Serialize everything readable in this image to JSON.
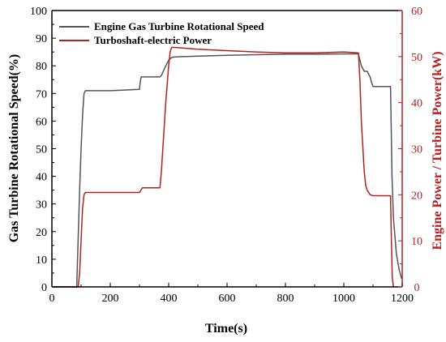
{
  "chart_data": {
    "type": "line",
    "xlabel": "Time(s)",
    "ylabel_left": "Gas Turbine Rotational Speed(%)",
    "ylabel_right": "Engine Power / Turbine Power(kW)",
    "xlim": [
      0,
      1200
    ],
    "ylim_left": [
      0,
      100
    ],
    "ylim_right": [
      0,
      60
    ],
    "x_ticks": [
      0,
      200,
      400,
      600,
      800,
      1000,
      1200
    ],
    "y_ticks_left": [
      0,
      10,
      20,
      30,
      40,
      50,
      60,
      70,
      80,
      90,
      100
    ],
    "y_ticks_right": [
      0,
      10,
      20,
      30,
      40,
      50,
      60
    ],
    "grid": false,
    "legend_position": "top-center",
    "colors": {
      "speed": "#555555",
      "power": "#b22222",
      "right_axis": "#b22222",
      "frame": "#000000"
    },
    "series": [
      {
        "name": "Engine Gas Turbine Rotational Speed",
        "axis": "left",
        "color": "#555555",
        "x": [
          0,
          85,
          95,
          100,
          105,
          110,
          115,
          200,
          300,
          302,
          304,
          306,
          310,
          370,
          375,
          390,
          400,
          410,
          420,
          500,
          600,
          700,
          800,
          900,
          1000,
          1050,
          1060,
          1070,
          1080,
          1090,
          1095,
          1100,
          1105,
          1110,
          1130,
          1160,
          1162,
          1165,
          1170,
          1180,
          1190,
          1198
        ],
        "y": [
          0,
          0,
          35,
          50,
          62,
          70,
          71,
          71,
          71.5,
          73.5,
          75,
          76,
          76,
          76,
          76.5,
          80,
          82,
          83,
          83.2,
          83.5,
          83.8,
          84,
          84.2,
          84.2,
          84.3,
          84.3,
          80,
          78,
          78,
          76,
          74,
          72.5,
          72.5,
          72.5,
          72.5,
          72.5,
          60,
          40,
          25,
          12,
          6,
          3
        ]
      },
      {
        "name": "Turboshaft-electric Power",
        "axis": "right",
        "color": "#b22222",
        "x": [
          0,
          90,
          95,
          100,
          105,
          110,
          115,
          200,
          300,
          310,
          370,
          375,
          380,
          390,
          400,
          405,
          410,
          420,
          500,
          600,
          700,
          800,
          900,
          1000,
          1050,
          1055,
          1060,
          1070,
          1075,
          1080,
          1090,
          1100,
          1160,
          1163,
          1166,
          1170
        ],
        "y": [
          0,
          0,
          3,
          10,
          17,
          20,
          20.5,
          20.5,
          20.5,
          21.5,
          21.5,
          25,
          30,
          40,
          48,
          51,
          52,
          52,
          51.6,
          51.3,
          51,
          50.8,
          50.8,
          51,
          50.8,
          45,
          36,
          25,
          22,
          21,
          20,
          19.8,
          19.8,
          10,
          2,
          0
        ]
      }
    ]
  }
}
